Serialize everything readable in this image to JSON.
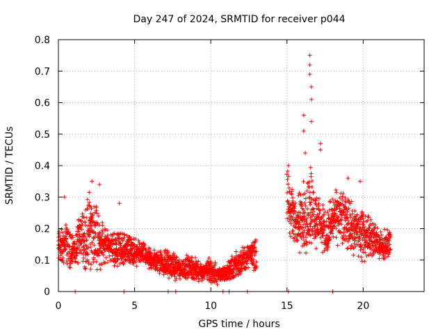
{
  "chart_data": {
    "type": "scatter",
    "title": "Day 247 of 2024, SRMTID for receiver p044",
    "xlabel": "GPS time / hours",
    "ylabel": "SRMTID / TECUs",
    "xlim": [
      0,
      24
    ],
    "ylim": [
      0,
      0.8
    ],
    "xticks": [
      0,
      5,
      10,
      15,
      20
    ],
    "xtick_labels": [
      "0",
      "5",
      "10",
      "15",
      "20"
    ],
    "yticks": [
      0,
      0.1,
      0.2,
      0.3,
      0.4,
      0.5,
      0.6,
      0.7,
      0.8
    ],
    "ytick_labels": [
      "0",
      "0.1",
      "0.2",
      "0.3",
      "0.4",
      "0.5",
      "0.6",
      "0.7",
      "0.8"
    ],
    "grid": true,
    "marker": "+",
    "series_color": "#ff0000",
    "series": [
      {
        "name": "SRMTID",
        "envelope_hours": [
          0.0,
          0.5,
          1.0,
          1.5,
          2.0,
          2.5,
          3.0,
          3.5,
          4.0,
          4.5,
          5.0,
          5.5,
          6.0,
          6.5,
          7.0,
          7.5,
          8.0,
          8.5,
          9.0,
          9.5,
          10.0,
          10.5,
          11.0,
          11.5,
          12.0,
          12.5,
          13.0,
          15.0,
          15.5,
          16.0,
          16.5,
          17.0,
          17.5,
          18.0,
          18.5,
          19.0,
          19.5,
          20.0,
          20.5,
          21.0,
          21.5,
          21.8
        ],
        "envelope_center": [
          0.14,
          0.15,
          0.13,
          0.16,
          0.2,
          0.17,
          0.15,
          0.14,
          0.13,
          0.14,
          0.12,
          0.12,
          0.1,
          0.1,
          0.09,
          0.08,
          0.07,
          0.08,
          0.07,
          0.06,
          0.07,
          0.05,
          0.06,
          0.08,
          0.1,
          0.11,
          0.12,
          0.3,
          0.22,
          0.22,
          0.27,
          0.23,
          0.18,
          0.22,
          0.24,
          0.22,
          0.19,
          0.18,
          0.18,
          0.15,
          0.14,
          0.16
        ],
        "envelope_spread": [
          0.06,
          0.08,
          0.06,
          0.1,
          0.15,
          0.12,
          0.07,
          0.06,
          0.07,
          0.05,
          0.05,
          0.04,
          0.04,
          0.04,
          0.05,
          0.05,
          0.04,
          0.04,
          0.04,
          0.03,
          0.05,
          0.03,
          0.03,
          0.05,
          0.05,
          0.04,
          0.06,
          0.1,
          0.1,
          0.12,
          0.15,
          0.1,
          0.08,
          0.1,
          0.09,
          0.1,
          0.09,
          0.09,
          0.07,
          0.06,
          0.06,
          0.05
        ],
        "peaks": [
          {
            "x": 16.5,
            "y": 0.75
          },
          {
            "x": 16.5,
            "y": 0.72
          },
          {
            "x": 16.5,
            "y": 0.69
          },
          {
            "x": 16.6,
            "y": 0.65
          },
          {
            "x": 16.6,
            "y": 0.61
          },
          {
            "x": 16.1,
            "y": 0.56
          },
          {
            "x": 16.6,
            "y": 0.54
          },
          {
            "x": 16.1,
            "y": 0.51
          },
          {
            "x": 17.2,
            "y": 0.47
          },
          {
            "x": 17.2,
            "y": 0.45
          },
          {
            "x": 16.2,
            "y": 0.44
          },
          {
            "x": 15.1,
            "y": 0.4
          },
          {
            "x": 2.2,
            "y": 0.35
          },
          {
            "x": 2.7,
            "y": 0.34
          },
          {
            "x": 0.4,
            "y": 0.3
          },
          {
            "x": 4.0,
            "y": 0.28
          },
          {
            "x": 19.8,
            "y": 0.35
          },
          {
            "x": 19.0,
            "y": 0.36
          }
        ],
        "zero_values_hours": [
          1.1,
          4.3,
          7.2,
          7.7,
          10.8,
          11.2,
          12.4,
          15.1,
          18.0
        ]
      }
    ]
  }
}
